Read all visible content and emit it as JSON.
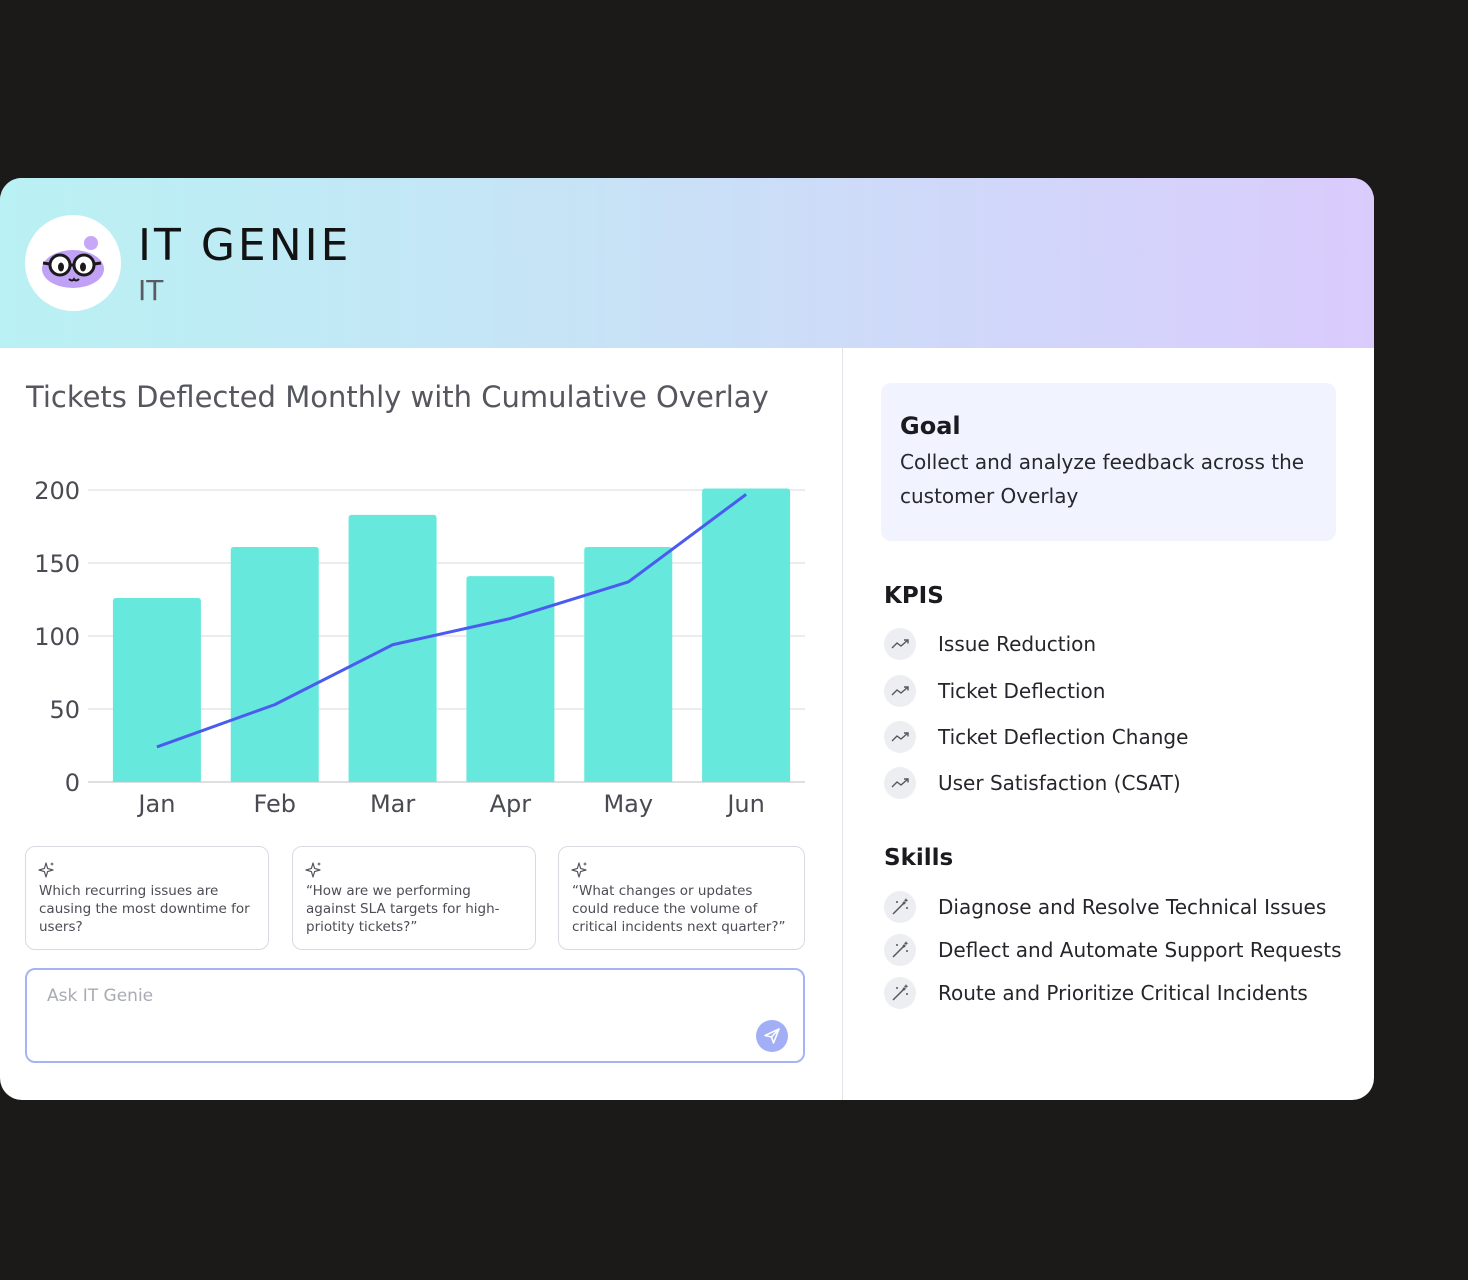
{
  "app": {
    "title": "IT GENIE",
    "subtitle": "IT",
    "avatar_icon": "genie-mascot-icon"
  },
  "chart_data": {
    "type": "bar",
    "title": "Tickets Deflected Monthly with Cumulative Overlay",
    "categories": [
      "Jan",
      "Feb",
      "Mar",
      "Apr",
      "May",
      "Jun"
    ],
    "series": [
      {
        "type": "bar",
        "values": [
          126,
          161,
          183,
          141,
          161,
          201
        ],
        "color": "#67e8dc"
      },
      {
        "type": "line",
        "values": [
          24,
          53,
          94,
          112,
          137,
          197
        ],
        "color": "#4a5bef"
      }
    ],
    "ylim": [
      0,
      200
    ],
    "yticks": [
      "0",
      "50",
      "100",
      "150",
      "200"
    ],
    "xlabel": "",
    "ylabel": "",
    "grid": true
  },
  "suggestions": [
    {
      "text": "Which recurring issues are causing the most downtime for users?",
      "icon": "sparkle-icon"
    },
    {
      "text": "“How are we performing against SLA targets for high-priotity tickets?”",
      "icon": "sparkle-icon"
    },
    {
      "text": "“What changes or updates could reduce the volume of critical incidents next quarter?”",
      "icon": "sparkle-icon"
    }
  ],
  "ask": {
    "placeholder": "Ask IT Genie",
    "send_icon": "send-icon"
  },
  "goal": {
    "title": "Goal",
    "text": "Collect and analyze feedback across the customer Overlay"
  },
  "kpis": {
    "title": "KPIS",
    "items": [
      {
        "label": "Issue Reduction",
        "icon": "trend-up-icon"
      },
      {
        "label": "Ticket Deflection",
        "icon": "trend-up-icon"
      },
      {
        "label": "Ticket Deflection Change",
        "icon": "trend-up-icon"
      },
      {
        "label": "User Satisfaction (CSAT)",
        "icon": "trend-up-icon"
      }
    ]
  },
  "skills": {
    "title": "Skills",
    "items": [
      {
        "label": "Diagnose and Resolve Technical Issues",
        "icon": "magic-wand-icon"
      },
      {
        "label": "Deflect and Automate Support Requests",
        "icon": "magic-wand-icon"
      },
      {
        "label": "Route and Prioritize Critical Incidents",
        "icon": "magic-wand-icon"
      }
    ]
  },
  "colors": {
    "accent": "#4a5bef",
    "bar": "#67e8dc",
    "background": "#1b1a19"
  }
}
